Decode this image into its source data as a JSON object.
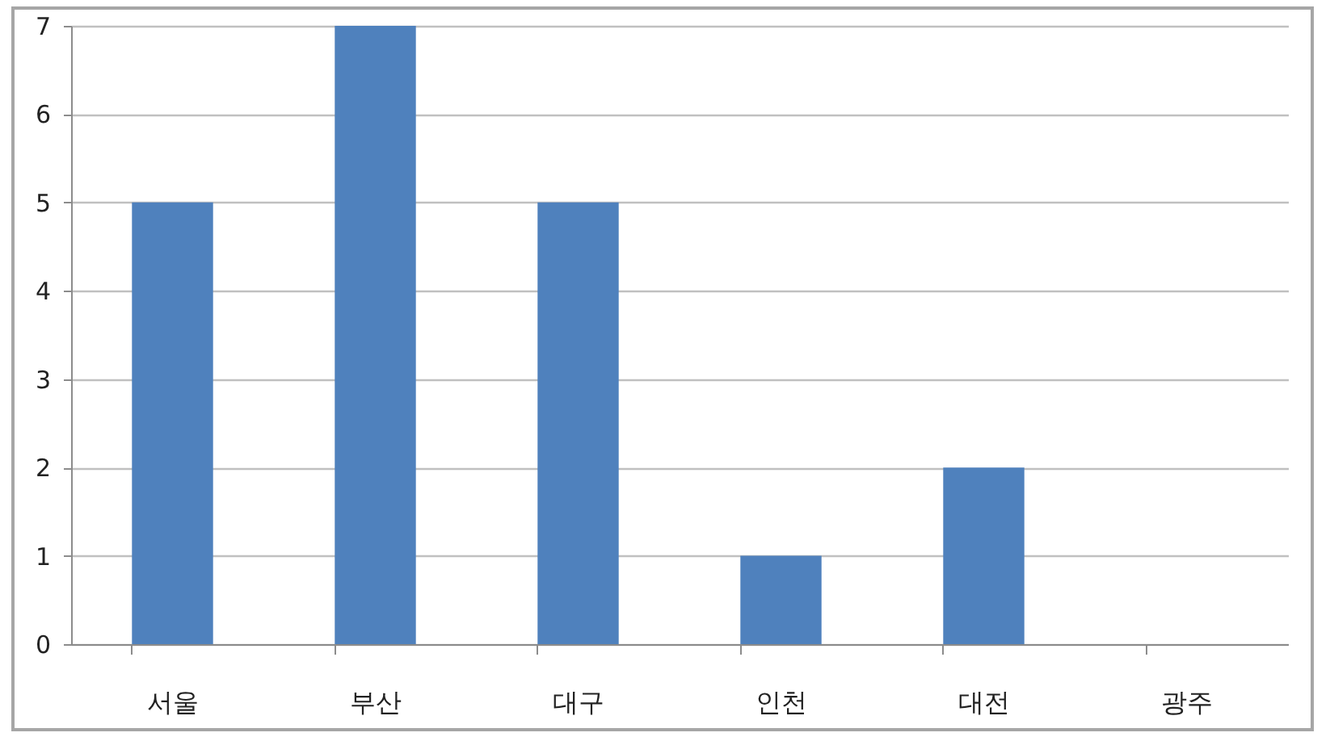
{
  "chart_data": {
    "type": "bar",
    "categories": [
      "서울",
      "부산",
      "대구",
      "인천",
      "대전",
      "광주"
    ],
    "values": [
      5,
      7,
      5,
      1,
      2,
      0
    ],
    "color": "#4f81bd",
    "ylim": [
      0,
      7
    ],
    "yticks": [
      0,
      1,
      2,
      3,
      4,
      5,
      6,
      7
    ],
    "grid": "y"
  }
}
